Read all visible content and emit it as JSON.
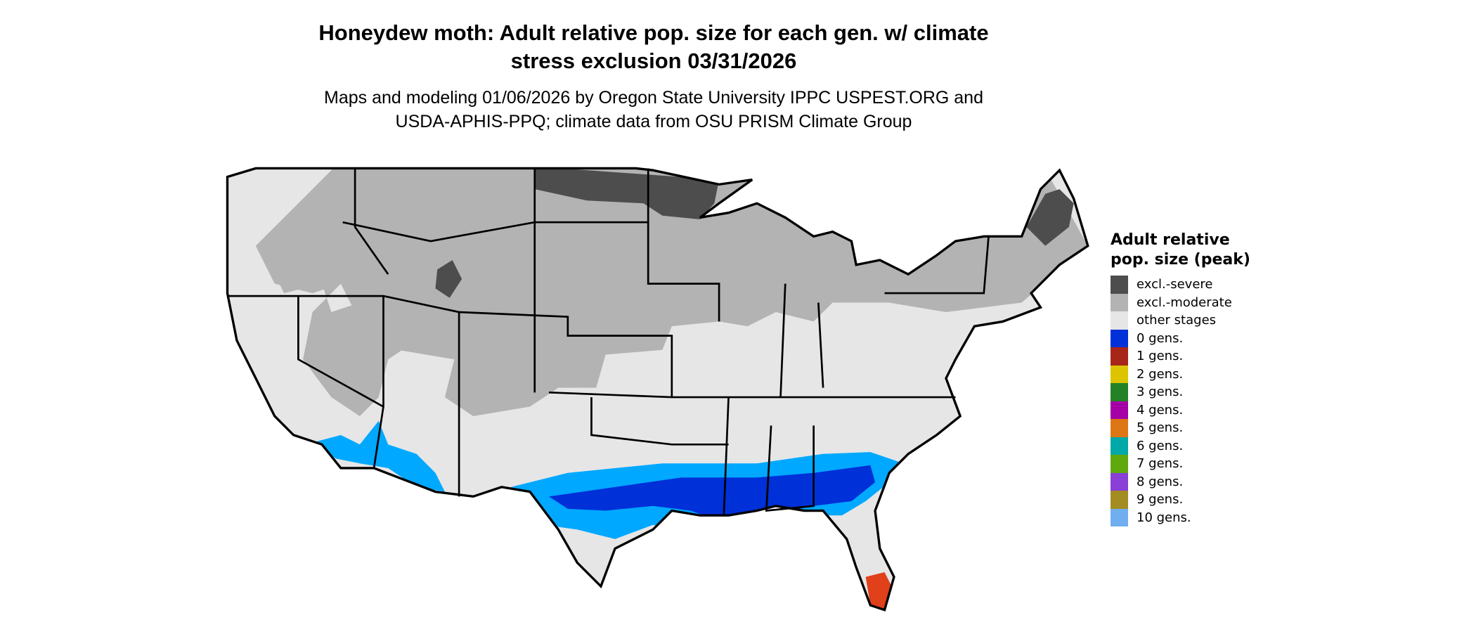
{
  "title_line1": "Honeydew moth: Adult relative pop. size for each gen. w/ climate",
  "title_line2": "stress exclusion 03/31/2026",
  "subtitle_line1": "Maps and modeling 01/06/2026 by Oregon State University IPPC USPEST.ORG and",
  "subtitle_line2": "USDA-APHIS-PPQ; climate data from OSU PRISM Climate Group",
  "legend": {
    "title": "Adult relative pop. size (peak)",
    "items": [
      {
        "label": "excl.-severe",
        "color": "#4d4d4d"
      },
      {
        "label": "excl.-moderate",
        "color": "#b3b3b3"
      },
      {
        "label": "other stages",
        "color": "#e6e6e6"
      },
      {
        "label": "0 gens.",
        "color": "#0030d8"
      },
      {
        "label": "1 gens.",
        "color": "#a8251a"
      },
      {
        "label": "2 gens.",
        "color": "#dcc400"
      },
      {
        "label": "3 gens.",
        "color": "#248226"
      },
      {
        "label": "4 gens.",
        "color": "#a500a5"
      },
      {
        "label": "5 gens.",
        "color": "#dd7614"
      },
      {
        "label": "6 gens.",
        "color": "#00a8a8"
      },
      {
        "label": "7 gens.",
        "color": "#5fa80e"
      },
      {
        "label": "8 gens.",
        "color": "#8a3fd6"
      },
      {
        "label": "9 gens.",
        "color": "#a38d22"
      },
      {
        "label": "10 gens.",
        "color": "#70aef0"
      }
    ]
  },
  "map_colors": {
    "light_blue": "#00a8ff",
    "dark_blue": "#0030d8",
    "florida_red": "#e0401a"
  }
}
